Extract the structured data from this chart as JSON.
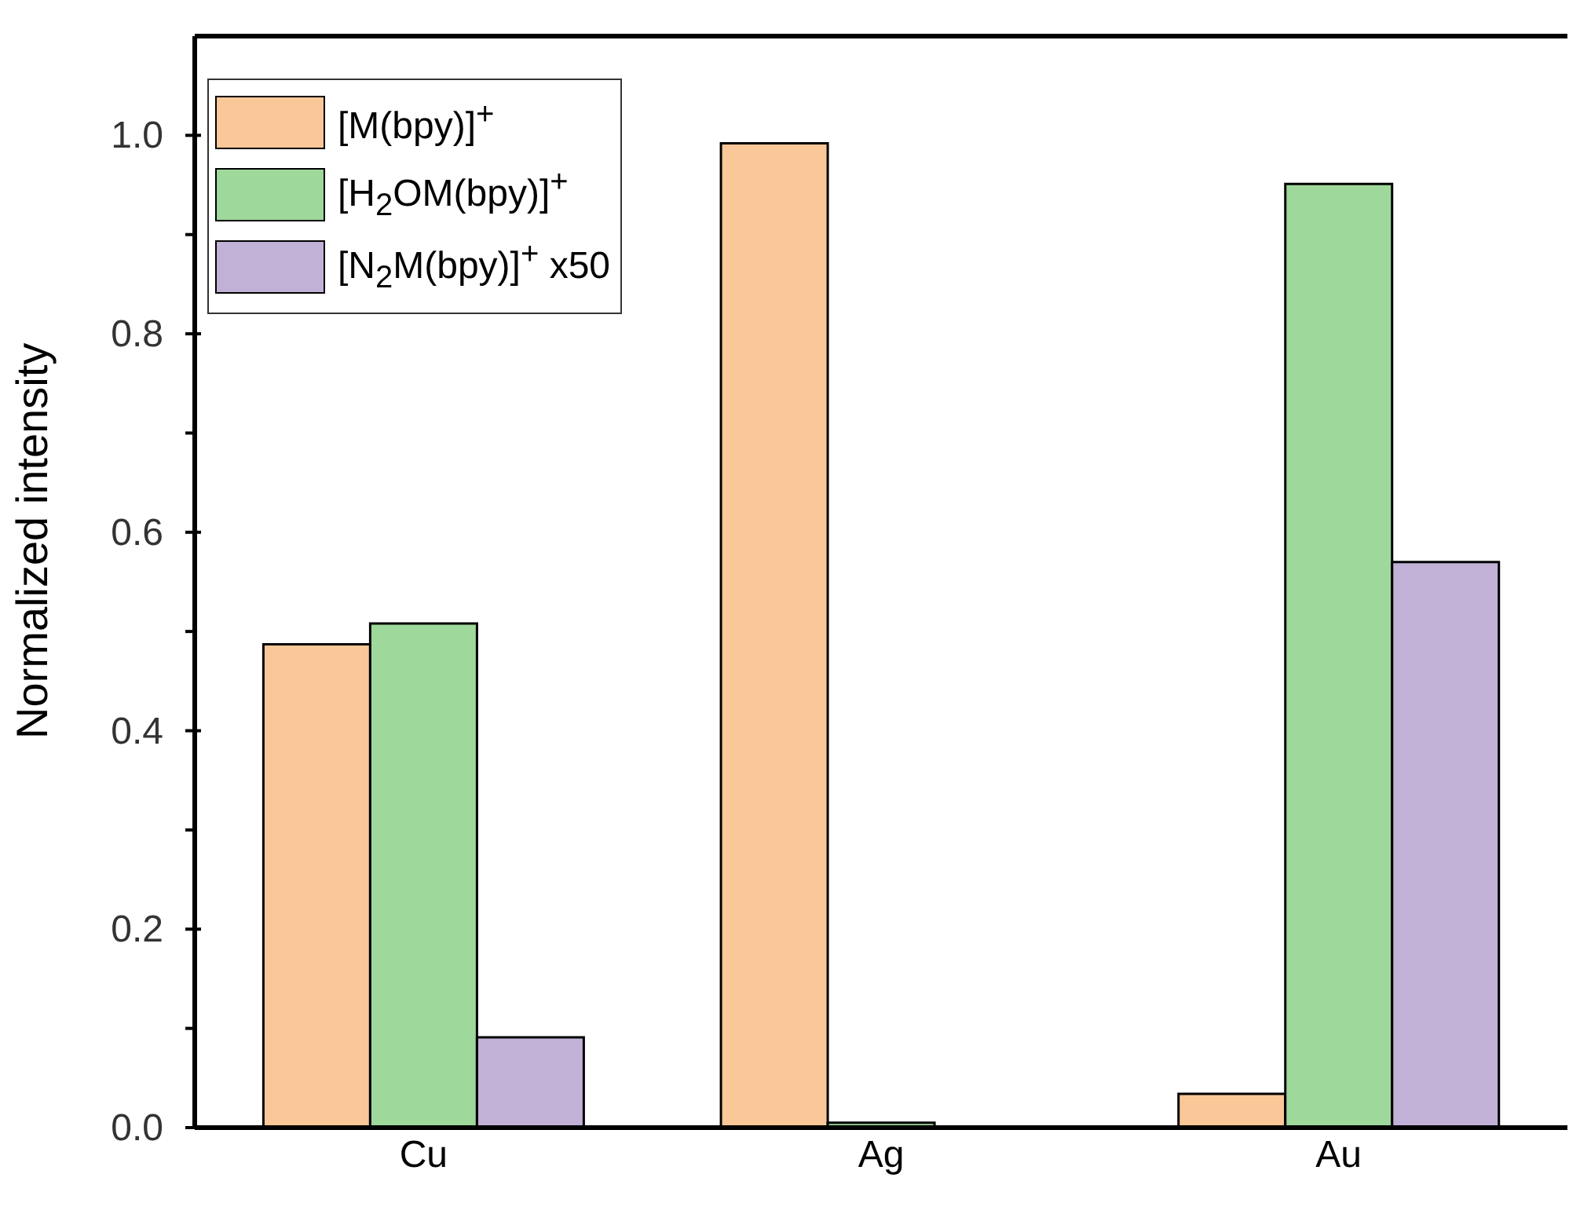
{
  "chart_data": {
    "type": "bar",
    "ylabel": "Normalized intensity",
    "categories": [
      "Cu",
      "Ag",
      "Au"
    ],
    "series": [
      {
        "name": "[M(bpy)]$^{+}$",
        "color": "#fac898",
        "values": [
          0.487,
          0.992,
          0.034
        ]
      },
      {
        "name": "[H$_{2}$OM(bpy)]$^{+}$",
        "color": "#9ed89a",
        "values": [
          0.508,
          0.005,
          0.951
        ]
      },
      {
        "name": "[N$_{2}$M(bpy)]$^{+}$ x50",
        "color": "#c1b1d6",
        "values": [
          0.091,
          null,
          0.57
        ]
      }
    ],
    "ylim": [
      0,
      1.1
    ],
    "yticks": [
      {
        "value": 0,
        "label": "0.0"
      },
      {
        "value": 0.1,
        "label": null
      },
      {
        "value": 0.2,
        "label": "0.2"
      },
      {
        "value": 0.3,
        "label": null
      },
      {
        "value": 0.4,
        "label": "0.4"
      },
      {
        "value": 0.5,
        "label": null
      },
      {
        "value": 0.6,
        "label": "0.6"
      },
      {
        "value": 0.7,
        "label": null
      },
      {
        "value": 0.8,
        "label": "0.8"
      },
      {
        "value": 0.9,
        "label": null
      },
      {
        "value": 1,
        "label": "1.0"
      }
    ],
    "grid": false,
    "legend": "top left"
  }
}
